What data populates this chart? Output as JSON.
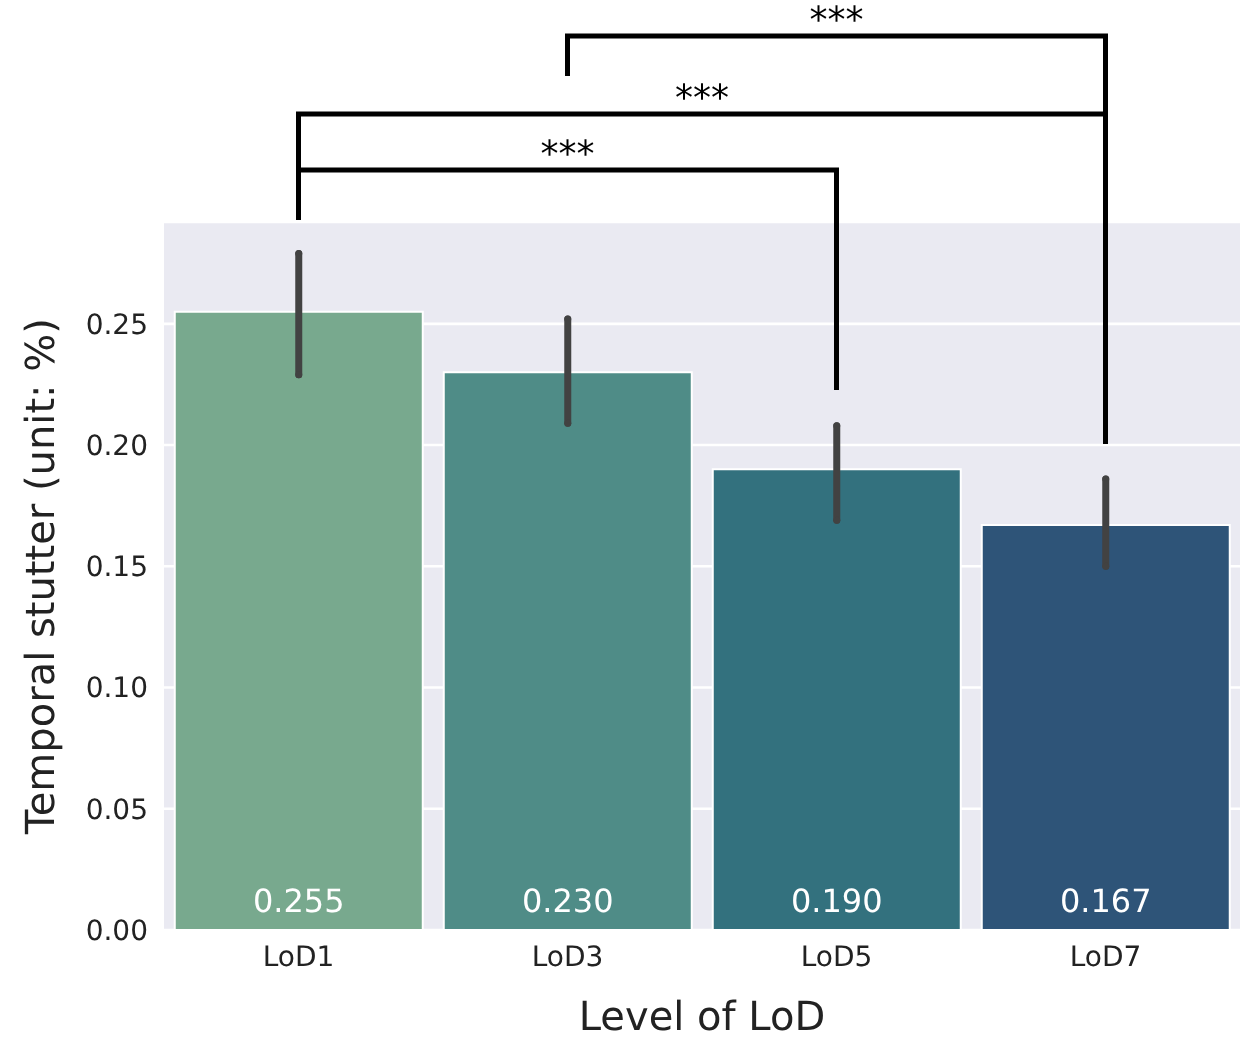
{
  "chart_data": {
    "type": "bar",
    "xlabel": "Level of LoD",
    "ylabel": "Temporal stutter (unit: %)",
    "categories": [
      "LoD1",
      "LoD3",
      "LoD5",
      "LoD7"
    ],
    "values": [
      0.255,
      0.23,
      0.19,
      0.167
    ],
    "colors": [
      "#78a98e",
      "#4f8c87",
      "#33717e",
      "#2e5478"
    ],
    "errors": [
      [
        0.229,
        0.279
      ],
      [
        0.209,
        0.252
      ],
      [
        0.169,
        0.208
      ],
      [
        0.15,
        0.186
      ]
    ],
    "value_labels": [
      "0.255",
      "0.230",
      "0.190",
      "0.167"
    ],
    "ylim": [
      0,
      0.292
    ],
    "yticks": [
      {
        "value": 0,
        "label": "0.00"
      },
      {
        "value": 0.05,
        "label": "0.05"
      },
      {
        "value": 0.1,
        "label": "0.10"
      },
      {
        "value": 0.15,
        "label": "0.15"
      },
      {
        "value": 0.2,
        "label": "0.20"
      },
      {
        "value": 0.25,
        "label": "0.25"
      }
    ],
    "grid": "y",
    "annotations": [
      "***",
      "***",
      "***"
    ]
  }
}
